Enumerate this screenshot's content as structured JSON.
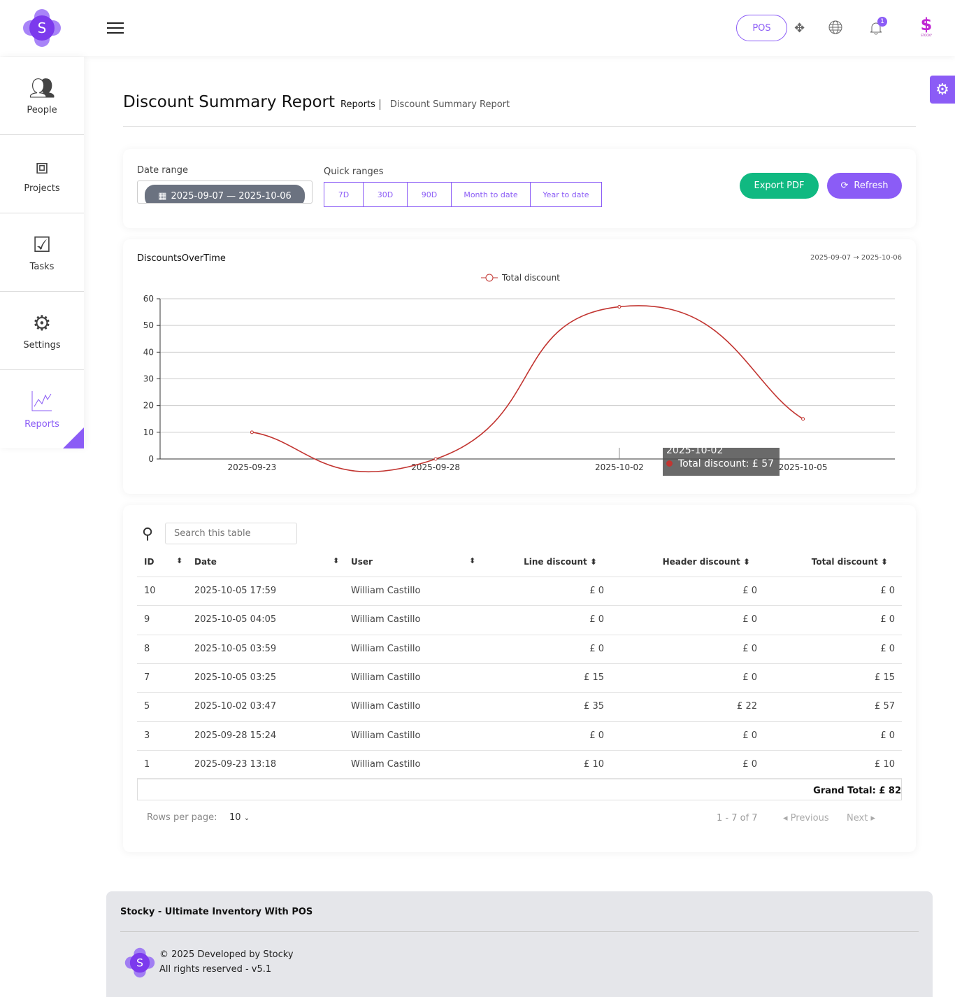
{
  "header": {
    "pos_label": "POS",
    "notification_count": "1",
    "brand_small": "STOCKY"
  },
  "sidebar": {
    "items": [
      {
        "label": "People"
      },
      {
        "label": "Projects"
      },
      {
        "label": "Tasks"
      },
      {
        "label": "Settings"
      },
      {
        "label": "Reports",
        "active": true
      }
    ]
  },
  "page": {
    "title": "Discount Summary Report",
    "breadcrumb_parent": "Reports",
    "breadcrumb_current": "Discount Summary Report"
  },
  "filters": {
    "date_range_label": "Date range",
    "date_range_value": "2025-09-07 — 2025-10-06",
    "quick_ranges_label": "Quick ranges",
    "quick_ranges": [
      "7D",
      "30D",
      "90D",
      "Month to date",
      "Year to date"
    ],
    "export_label": "Export PDF",
    "refresh_label": "Refresh"
  },
  "chart_card": {
    "title": "DiscountsOverTime",
    "range": "2025-09-07 → 2025-10-06",
    "tooltip_date": "2025-10-02",
    "tooltip_text": "Total discount: £ 57"
  },
  "chart_data": {
    "type": "line",
    "categories": [
      "2025-09-23",
      "2025-09-28",
      "2025-10-02",
      "2025-10-05"
    ],
    "series": [
      {
        "name": "Total discount",
        "values": [
          10,
          0,
          57,
          15
        ],
        "color": "#c23531"
      }
    ],
    "ylim": [
      0,
      60
    ],
    "yticks": [
      0,
      10,
      20,
      30,
      40,
      50,
      60
    ],
    "legend": "top-center",
    "grid": true,
    "smooth": true
  },
  "table": {
    "search_placeholder": "Search this table",
    "columns": [
      "ID",
      "Date",
      "User",
      "Line discount",
      "Header discount",
      "Total discount"
    ],
    "rows": [
      [
        "10",
        "2025-10-05 17:59",
        "William Castillo",
        "£ 0",
        "£ 0",
        "£ 0"
      ],
      [
        "9",
        "2025-10-05 04:05",
        "William Castillo",
        "£ 0",
        "£ 0",
        "£ 0"
      ],
      [
        "8",
        "2025-10-05 03:59",
        "William Castillo",
        "£ 0",
        "£ 0",
        "£ 0"
      ],
      [
        "7",
        "2025-10-05 03:25",
        "William Castillo",
        "£ 15",
        "£ 0",
        "£ 15"
      ],
      [
        "5",
        "2025-10-02 03:47",
        "William Castillo",
        "£ 35",
        "£ 22",
        "£ 57"
      ],
      [
        "3",
        "2025-09-28 15:24",
        "William Castillo",
        "£ 0",
        "£ 0",
        "£ 0"
      ],
      [
        "1",
        "2025-09-23 13:18",
        "William Castillo",
        "£ 10",
        "£ 0",
        "£ 10"
      ]
    ],
    "grand_total": "Grand Total: £ 82",
    "rows_per_page_label": "Rows per page:",
    "rows_per_page": "10",
    "page_info": "1 - 7 of 7",
    "prev_label": "Previous",
    "next_label": "Next"
  },
  "footer": {
    "title": "Stocky - Ultimate Inventory With POS",
    "copyright": "© 2025 Developed by Stocky",
    "rights": "All rights reserved - v5.1"
  },
  "colors": {
    "accent": "#8b5cf6",
    "export": "#10b981",
    "line": "#c23531"
  }
}
